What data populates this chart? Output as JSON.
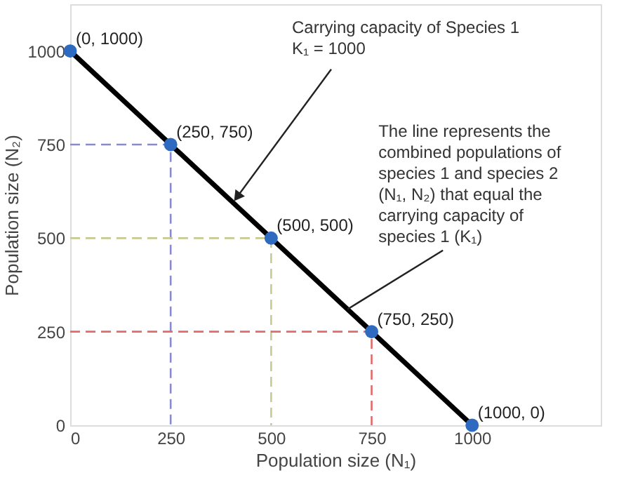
{
  "chart_data": {
    "type": "line",
    "xlabel": "Population size (N₁)",
    "ylabel": "Population size (N₂)",
    "xlim": [
      0,
      1320
    ],
    "ylim": [
      0,
      1125
    ],
    "xticks": [
      0,
      250,
      500,
      750,
      1000
    ],
    "yticks": [
      0,
      250,
      500,
      750,
      1000
    ],
    "series": [
      {
        "color": "#8a8ad0",
        "line_style": "dashed",
        "x": [
          0,
          250,
          250
        ],
        "values": [
          750,
          750,
          0
        ]
      },
      {
        "color": "#c9c992",
        "line_style": "dashed",
        "x": [
          0,
          500,
          500
        ],
        "values": [
          500,
          500,
          0
        ]
      },
      {
        "color": "#e46a6a",
        "line_style": "dashed",
        "x": [
          0,
          750,
          750
        ],
        "values": [
          250,
          250,
          0
        ]
      },
      {
        "color": "#000000",
        "line_style": "solid",
        "x": [
          0,
          1000
        ],
        "values": [
          1000,
          0
        ]
      },
      {
        "type": "scatter",
        "color": "#2e6bc0",
        "marker": "circle",
        "x": [
          0,
          250,
          500,
          750,
          1000
        ],
        "values": [
          1000,
          750,
          500,
          250,
          0
        ],
        "value_labels": [
          "(0, 1000)",
          "(250, 750)",
          "(500, 500)",
          "(750, 250)",
          "(1000, 0)"
        ]
      }
    ],
    "annotations": [
      {
        "text": "Carrying capacity of Species 1\nK₁ = 1000",
        "x": 405,
        "y": 595
      },
      {
        "text": "The line represents the\ncombined populations of\nspecies 1 and species 2\n(N₁, N₂) that equal the\ncarrying capacity of\nspecies 1 (K₁)",
        "x": 690,
        "y": 310
      }
    ]
  }
}
